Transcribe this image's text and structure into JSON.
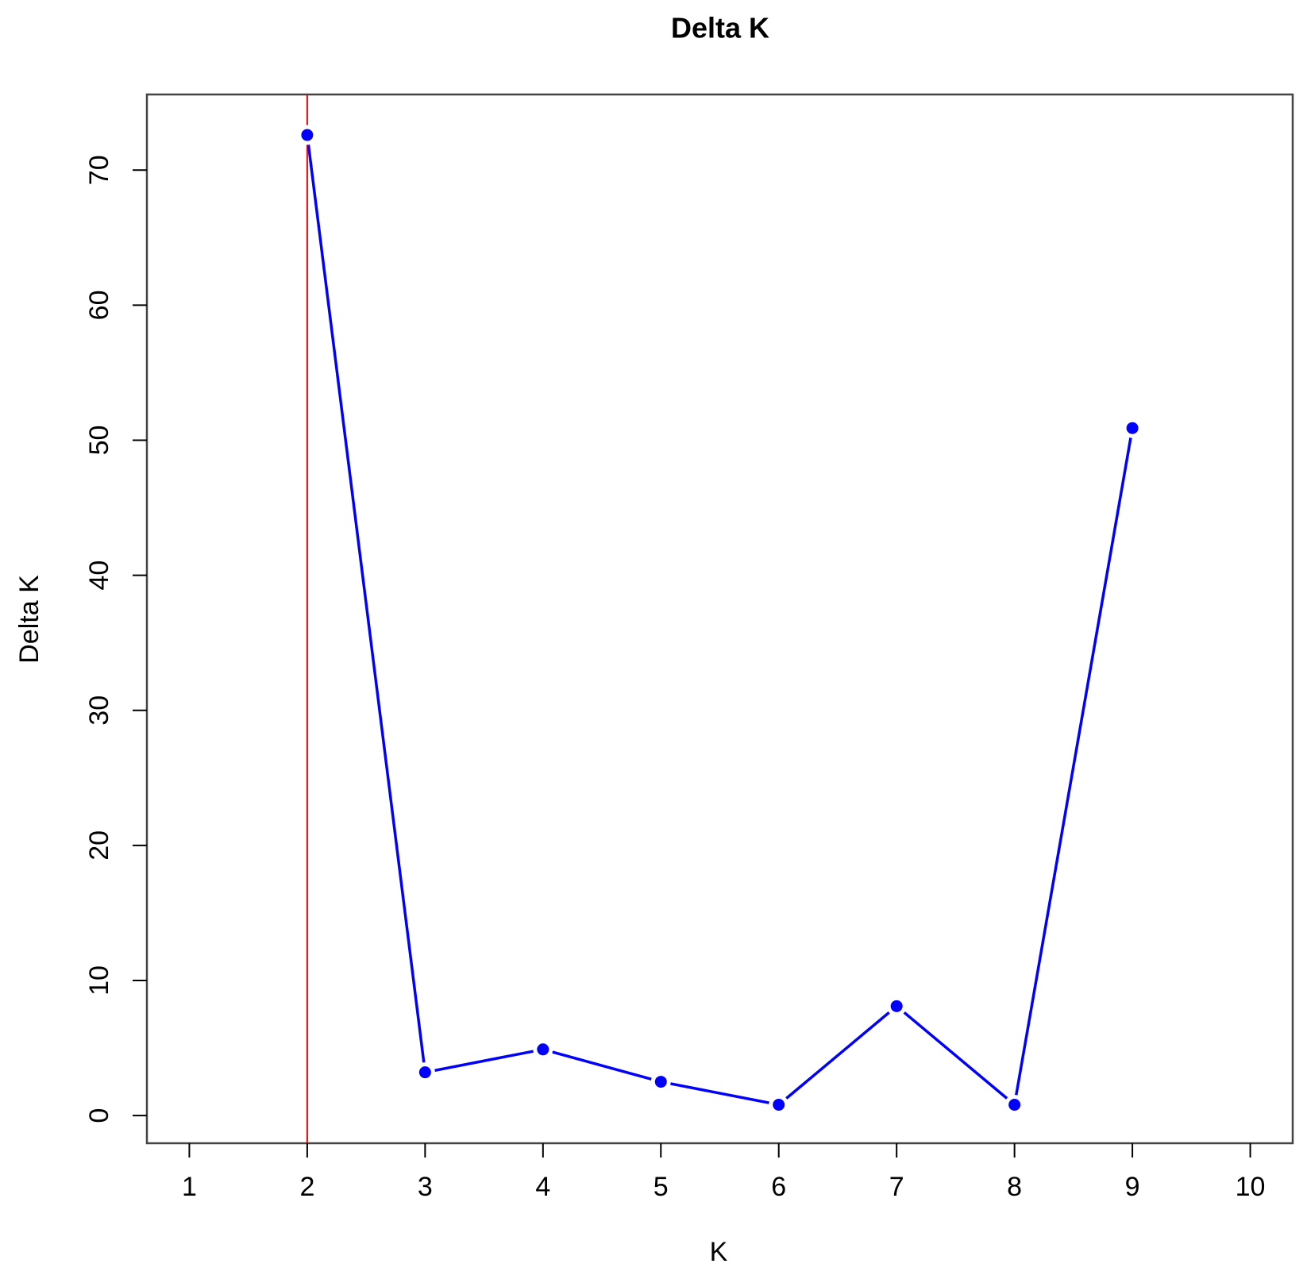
{
  "chart_data": {
    "type": "line",
    "title": "Delta K",
    "x_label": "K",
    "y_label": "Delta K",
    "x": [
      2,
      3,
      4,
      5,
      6,
      7,
      8,
      9
    ],
    "values": [
      72.6,
      3.2,
      4.9,
      2.5,
      0.8,
      8.1,
      0.8,
      50.9
    ],
    "color": "#0000ff",
    "vline": 2,
    "vline_color": "#ff0000",
    "xlim": [
      0.64,
      10.36
    ],
    "xticks": [
      1,
      2,
      3,
      4,
      5,
      6,
      7,
      8,
      9,
      10
    ],
    "ylim": [
      -2.05,
      75.6
    ],
    "yticks": [
      0,
      10,
      20,
      30,
      40,
      50,
      60,
      70
    ],
    "grid": false
  }
}
